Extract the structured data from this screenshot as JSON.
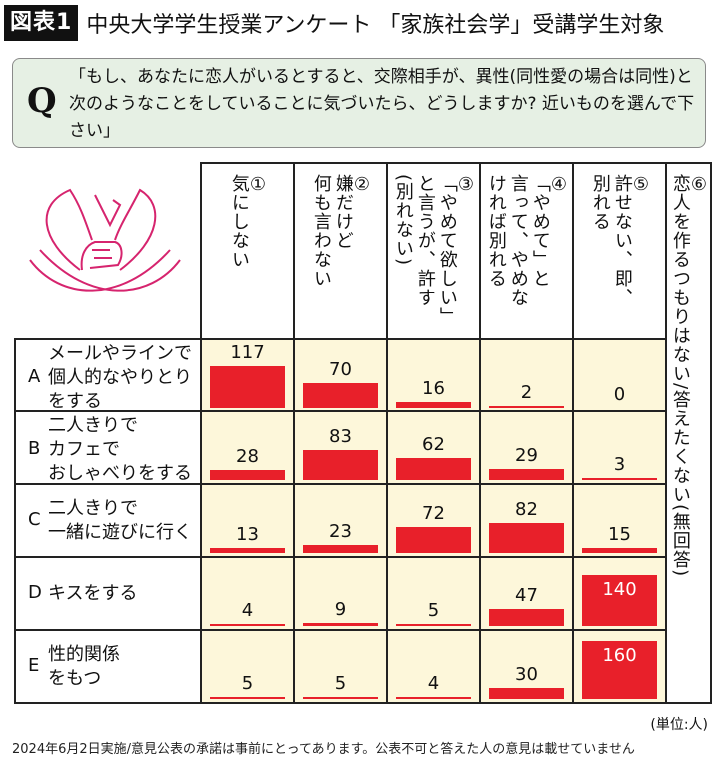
{
  "header": {
    "figure_label": "図表1",
    "title": "中央大学学生授業アンケート 「家族社会学」受講学生対象"
  },
  "question": {
    "mark": "Q",
    "text": "「もし、あなたに恋人がいるとすると、交際相手が、異性(同性愛の場合は同性)と次のようなことをしていることに気づいたら、どうしますか? 近いものを選んで下さい」"
  },
  "illustration": {
    "icon": "holding-hands-heart-icon",
    "color": "#d6246e"
  },
  "colors": {
    "bar": "#e8202a",
    "cell_bg": "#fdf7da",
    "qbox_bg": "#e6f0e4",
    "grid": "#222222"
  },
  "chart_data": {
    "type": "table",
    "title": "中央大学学生授業アンケート 「家族社会学」受講学生対象",
    "unit": "(単位:人)",
    "columns": [
      {
        "num": "①",
        "label": "気にしない"
      },
      {
        "num": "②",
        "label": "嫌だけど\n何も言わない"
      },
      {
        "num": "③",
        "label": "「やめて欲しい」\nと言うが、許す\n(別れない)"
      },
      {
        "num": "④",
        "label": "「やめて」と\n言って、やめな\nければ別れる"
      },
      {
        "num": "⑤",
        "label": "許せない、即、\n別れる"
      },
      {
        "num": "⑥",
        "label": "恋人を作るつもりはない/答えたくない(無回答)"
      }
    ],
    "rows": [
      {
        "letter": "A",
        "label": "メールやラインで\n個人的なやりとり\nをする",
        "values": [
          117,
          70,
          16,
          2,
          0
        ]
      },
      {
        "letter": "B",
        "label": "二人きりで\nカフェで\nおしゃべりをする",
        "values": [
          28,
          83,
          62,
          29,
          3
        ]
      },
      {
        "letter": "C",
        "label": "二人きりで\n一緒に遊びに行く",
        "values": [
          13,
          23,
          72,
          82,
          15
        ]
      },
      {
        "letter": "D",
        "label": "キスをする",
        "values": [
          4,
          9,
          5,
          47,
          140
        ]
      },
      {
        "letter": "E",
        "label": "性的関係\nをもつ",
        "values": [
          5,
          5,
          4,
          30,
          160
        ]
      }
    ],
    "series": [
      {
        "name": "① 気にしない",
        "values": [
          117,
          28,
          13,
          4,
          5
        ]
      },
      {
        "name": "② 嫌だけど何も言わない",
        "values": [
          70,
          83,
          23,
          9,
          5
        ]
      },
      {
        "name": "③ 「やめて欲しい」と言うが、許す(別れない)",
        "values": [
          16,
          62,
          72,
          5,
          4
        ]
      },
      {
        "name": "④ 「やめて」と言って、やめなければ別れる",
        "values": [
          2,
          29,
          82,
          47,
          30
        ]
      },
      {
        "name": "⑤ 許せない、即、別れる",
        "values": [
          0,
          3,
          15,
          140,
          160
        ]
      }
    ],
    "categories": [
      "A",
      "B",
      "C",
      "D",
      "E"
    ]
  },
  "footer": {
    "unit": "(単位:人)",
    "note": "2024年6月2日実施/意見公表の承諾は事前にとってあります。公表不可と答えた人の意見は載せていません"
  }
}
